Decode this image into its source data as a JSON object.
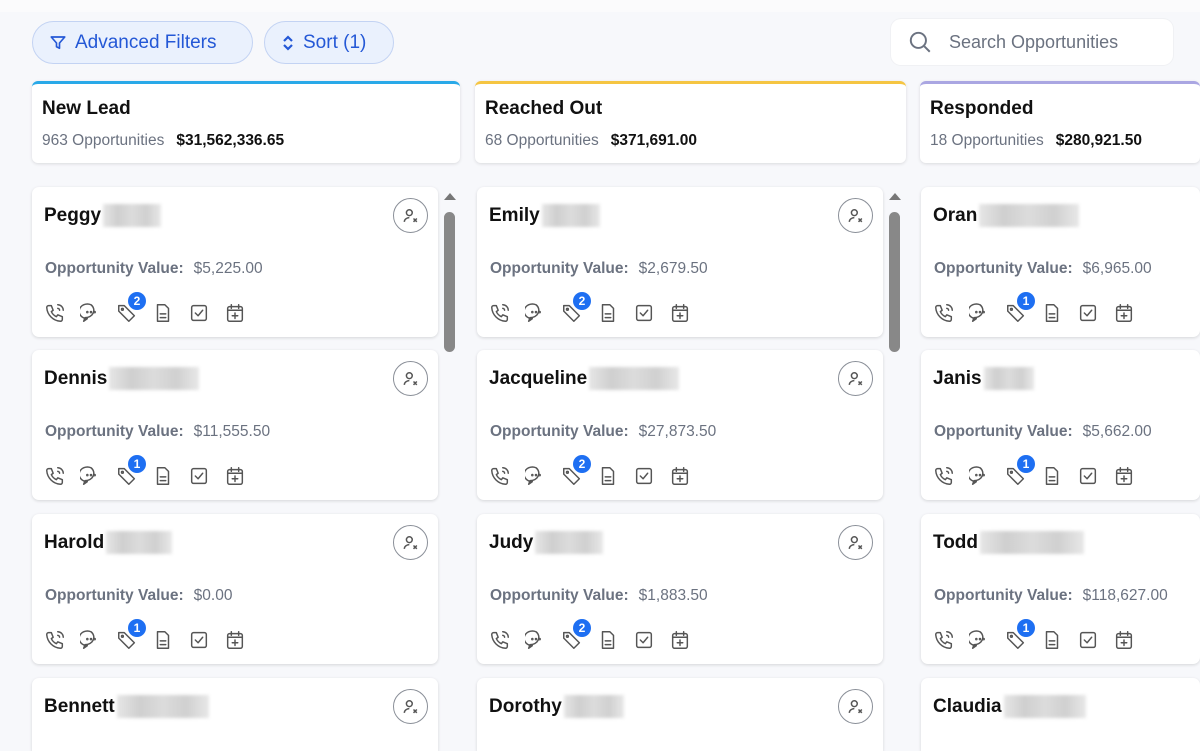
{
  "toolbar": {
    "filters_label": "Advanced Filters",
    "sort_label": "Sort (1)",
    "search_placeholder": "Search Opportunities"
  },
  "colors": {
    "accent": "#2458d6",
    "badge": "#1e6ff2",
    "new_lead": "#29a9e8",
    "reached_out": "#f5c542",
    "responded": "#aaa6e2"
  },
  "value_label": "Opportunity Value:",
  "columns": [
    {
      "title": "New Lead",
      "count": "963 Opportunities",
      "total": "$31,562,336.65",
      "cards": [
        {
          "name": "Peggy",
          "value": "$5,225.00",
          "tags": "2"
        },
        {
          "name": "Dennis",
          "value": "$11,555.50",
          "tags": "1"
        },
        {
          "name": "Harold",
          "value": "$0.00",
          "tags": "1"
        },
        {
          "name": "Bennett"
        }
      ]
    },
    {
      "title": "Reached Out",
      "count": "68 Opportunities",
      "total": "$371,691.00",
      "cards": [
        {
          "name": "Emily",
          "value": "$2,679.50",
          "tags": "2"
        },
        {
          "name": "Jacqueline",
          "value": "$27,873.50",
          "tags": "2"
        },
        {
          "name": "Judy",
          "value": "$1,883.50",
          "tags": "2"
        },
        {
          "name": "Dorothy"
        }
      ]
    },
    {
      "title": "Responded",
      "count": "18 Opportunities",
      "total": "$280,921.50",
      "cards": [
        {
          "name": "Oran",
          "value": "$6,965.00",
          "tags": "1"
        },
        {
          "name": "Janis",
          "value": "$5,662.00",
          "tags": "1"
        },
        {
          "name": "Todd",
          "value": "$118,627.00",
          "tags": "1"
        },
        {
          "name": "Claudia"
        }
      ]
    }
  ]
}
